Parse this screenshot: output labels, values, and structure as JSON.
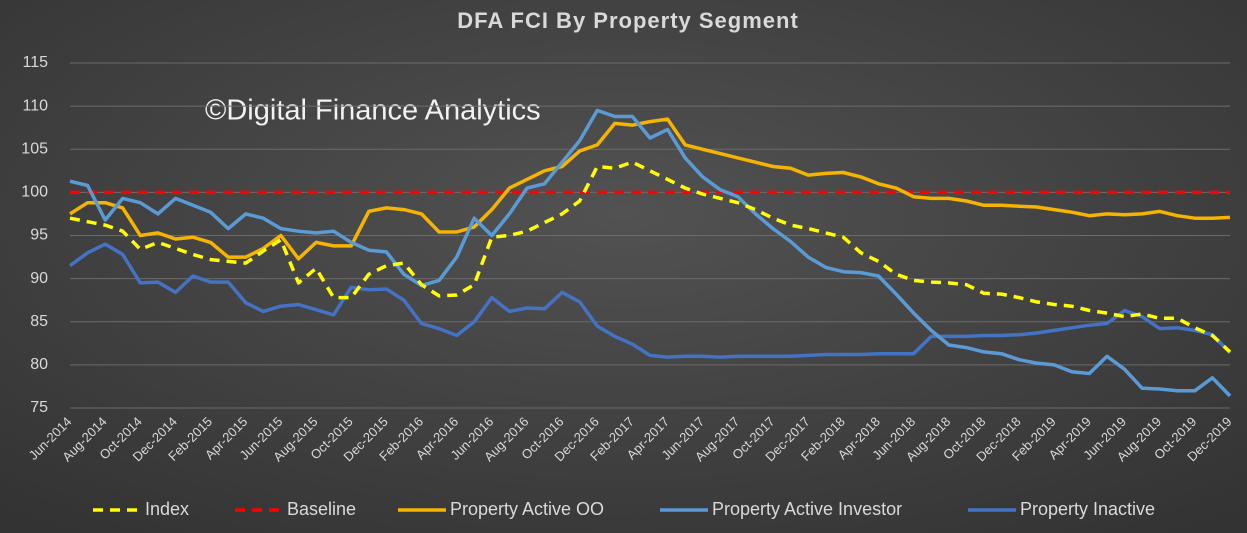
{
  "chart_data": {
    "type": "line",
    "title": "DFA FCI By Property Segment",
    "annotation": "©Digital Finance Analytics",
    "grid": true,
    "legend": "bottom",
    "ylim": [
      75,
      115
    ],
    "yticks": [
      75,
      80,
      85,
      90,
      95,
      100,
      105,
      110,
      115
    ],
    "categories": [
      "Jun-2014",
      null,
      "Aug-2014",
      null,
      "Oct-2014",
      null,
      "Dec-2014",
      null,
      "Feb-2015",
      null,
      "Apr-2015",
      null,
      "Jun-2015",
      null,
      "Aug-2015",
      null,
      "Oct-2015",
      null,
      "Dec-2015",
      null,
      "Feb-2016",
      null,
      "Apr-2016",
      null,
      "Jun-2016",
      null,
      "Aug-2016",
      null,
      "Oct-2016",
      null,
      "Dec-2016",
      null,
      "Feb-2017",
      null,
      "Apr-2017",
      null,
      "Jun-2017",
      null,
      "Aug-2017",
      null,
      "Oct-2017",
      null,
      "Dec-2017",
      null,
      "Feb-2018",
      null,
      "Apr-2018",
      null,
      "Jun-2018",
      null,
      "Aug-2018",
      null,
      "Oct-2018",
      null,
      "Dec-2018",
      null,
      "Feb-2019",
      null,
      "Apr-2019",
      null,
      "Jun-2019",
      null,
      "Aug-2019",
      null,
      "Oct-2019",
      null,
      "Dec-2019"
    ],
    "series": [
      {
        "name": "Index",
        "color": "#ffff00",
        "line_style": "dashed",
        "values": [
          97,
          96.6,
          96.2,
          95.5,
          93.4,
          94.2,
          93.5,
          92.8,
          92.2,
          92,
          91.8,
          93.2,
          94.5,
          89.5,
          91.2,
          87.8,
          87.8,
          90.5,
          91.5,
          91.8,
          89.3,
          88,
          88.1,
          89.3,
          94.8,
          95,
          95.5,
          96.5,
          97.5,
          99,
          103,
          102.8,
          103.5,
          102.5,
          101.5,
          100.5,
          99.8,
          99.3,
          98.8,
          98,
          97,
          96.2,
          95.8,
          95.3,
          94.8,
          93,
          92,
          90.5,
          89.8,
          89.6,
          89.5,
          89.3,
          88.3,
          88.2,
          87.8,
          87.3,
          87,
          86.8,
          86.3,
          86,
          85.6,
          85.9,
          85.4,
          85.4,
          84.3,
          83.4,
          81.5
        ]
      },
      {
        "name": "Baseline",
        "color": "#ff0000",
        "line_style": "dashed",
        "values": [
          100,
          100,
          100,
          100,
          100,
          100,
          100,
          100,
          100,
          100,
          100,
          100,
          100,
          100,
          100,
          100,
          100,
          100,
          100,
          100,
          100,
          100,
          100,
          100,
          100,
          100,
          100,
          100,
          100,
          100,
          100,
          100,
          100,
          100,
          100,
          100,
          100,
          100,
          100,
          100,
          100,
          100,
          100,
          100,
          100,
          100,
          100,
          100,
          100,
          100,
          100,
          100,
          100,
          100,
          100,
          100,
          100,
          100,
          100,
          100,
          100,
          100,
          100,
          100,
          100,
          100,
          100
        ]
      },
      {
        "name": "Property Active OO",
        "color": "#f5b400",
        "line_style": "solid",
        "values": [
          97.5,
          98.8,
          98.8,
          98.2,
          95,
          95.3,
          94.6,
          94.8,
          94.2,
          92.5,
          92.5,
          93.5,
          95,
          92.3,
          94.2,
          93.8,
          93.8,
          97.8,
          98.2,
          98,
          97.5,
          95.4,
          95.4,
          96,
          98,
          100.5,
          101.5,
          102.5,
          103,
          104.8,
          105.5,
          108,
          107.8,
          108.2,
          108.5,
          105.5,
          105,
          104.5,
          104,
          103.5,
          103,
          102.8,
          102,
          102.2,
          102.3,
          101.8,
          101,
          100.5,
          99.5,
          99.3,
          99.3,
          99,
          98.5,
          98.5,
          98.4,
          98.3,
          98,
          97.7,
          97.3,
          97.5,
          97.4,
          97.5,
          97.8,
          97.3,
          97,
          97,
          97.1
        ]
      },
      {
        "name": "Property Active Investor",
        "color": "#5b9bd5",
        "line_style": "solid",
        "values": [
          101.3,
          100.8,
          96.8,
          99.3,
          98.8,
          97.5,
          99.3,
          98.5,
          97.7,
          95.8,
          97.5,
          97,
          95.8,
          95.5,
          95.3,
          95.5,
          94.2,
          93.3,
          93.1,
          90.5,
          89.2,
          89.8,
          92.5,
          97,
          95,
          97.5,
          100.5,
          101,
          103.5,
          106,
          109.5,
          108.8,
          108.8,
          106.3,
          107.3,
          104,
          101.8,
          100.3,
          99.5,
          97.5,
          95.8,
          94.3,
          92.5,
          91.3,
          90.8,
          90.7,
          90.3,
          88.2,
          86,
          84,
          82.3,
          82,
          81.5,
          81.3,
          80.6,
          80.2,
          80,
          79.2,
          79,
          81,
          79.5,
          77.3,
          77.2,
          77,
          77,
          78.5,
          76.4
        ]
      },
      {
        "name": "Property Inactive",
        "color": "#4472c4",
        "line_style": "solid",
        "values": [
          91.5,
          93,
          94,
          92.8,
          89.5,
          89.6,
          88.4,
          90.3,
          89.6,
          89.6,
          87.2,
          86.2,
          86.8,
          87,
          86.4,
          85.8,
          89,
          88.7,
          88.8,
          87.5,
          84.8,
          84.2,
          83.4,
          85,
          87.8,
          86.2,
          86.6,
          86.5,
          88.4,
          87.3,
          84.5,
          83.3,
          82.4,
          81.1,
          80.9,
          81,
          81,
          80.9,
          81,
          81,
          81,
          81,
          81.1,
          81.2,
          81.2,
          81.2,
          81.3,
          81.3,
          81.3,
          83.3,
          83.3,
          83.3,
          83.4,
          83.4,
          83.5,
          83.7,
          84,
          84.3,
          84.6,
          84.8,
          86.3,
          85.6,
          84.2,
          84.3,
          84,
          83.5,
          81.4
        ]
      }
    ]
  }
}
